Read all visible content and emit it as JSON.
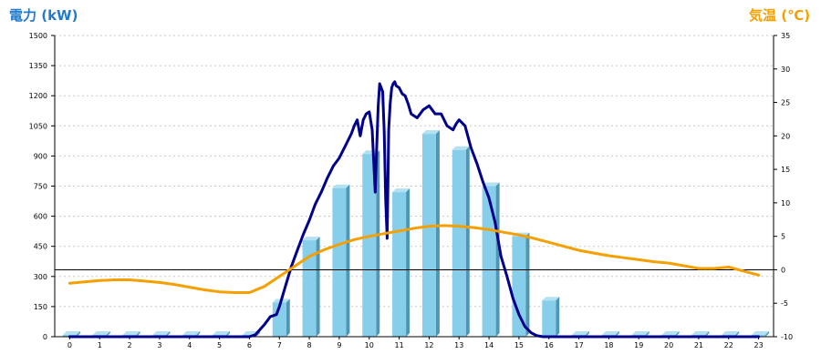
{
  "chart_data": {
    "type": "bar+line",
    "y_left_label": "電力 (kW)",
    "y_right_label": "気温 (℃)",
    "categories": [
      "0",
      "1",
      "2",
      "3",
      "4",
      "5",
      "6",
      "7",
      "8",
      "9",
      "10",
      "11",
      "12",
      "13",
      "14",
      "15",
      "16",
      "17",
      "18",
      "19",
      "20",
      "21",
      "22",
      "23"
    ],
    "y_left_ticks": [
      0,
      150,
      300,
      450,
      600,
      750,
      900,
      1050,
      1200,
      1350,
      1500
    ],
    "y_right_ticks": [
      "-10",
      "-5",
      "0",
      "5",
      "10",
      "15",
      "20",
      "25",
      "30",
      "35"
    ],
    "ylim_left": [
      0,
      1500
    ],
    "ylim_right": [
      -10,
      35
    ],
    "grid": "horizontal dotted",
    "series": [
      {
        "type": "bar",
        "axis": "left",
        "values": [
          0,
          0,
          0,
          0,
          0,
          0,
          0,
          170,
          480,
          740,
          910,
          720,
          1010,
          930,
          750,
          500,
          180,
          0,
          0,
          0,
          0,
          0,
          0,
          0
        ],
        "color": "#87ceeb"
      },
      {
        "type": "line",
        "axis": "left",
        "color": "#00008b",
        "x": [
          0,
          1,
          2,
          3,
          4,
          5,
          6,
          6.2,
          6.5,
          6.7,
          6.9,
          7.0,
          7.2,
          7.4,
          7.6,
          7.8,
          8.0,
          8.2,
          8.4,
          8.6,
          8.8,
          9.0,
          9.2,
          9.4,
          9.5,
          9.6,
          9.7,
          9.8,
          9.9,
          10.0,
          10.1,
          10.2,
          10.25,
          10.3,
          10.35,
          10.4,
          10.45,
          10.5,
          10.55,
          10.6,
          10.65,
          10.7,
          10.75,
          10.8,
          10.85,
          10.9,
          11.0,
          11.1,
          11.2,
          11.3,
          11.4,
          11.6,
          11.8,
          12.0,
          12.2,
          12.4,
          12.6,
          12.8,
          12.9,
          13.0,
          13.2,
          13.4,
          13.6,
          13.8,
          14.0,
          14.2,
          14.4,
          14.6,
          14.8,
          15.0,
          15.2,
          15.4,
          15.6,
          15.8,
          16.0,
          16.2,
          16.4,
          16.6,
          16.8,
          17,
          18,
          19,
          20,
          21,
          22,
          23
        ],
        "values": [
          0,
          0,
          0,
          0,
          0,
          0,
          0,
          10,
          60,
          100,
          110,
          150,
          250,
          350,
          430,
          510,
          580,
          660,
          720,
          790,
          850,
          890,
          950,
          1010,
          1050,
          1080,
          1000,
          1080,
          1110,
          1120,
          1030,
          720,
          950,
          1150,
          1260,
          1240,
          1220,
          1020,
          680,
          490,
          1030,
          1160,
          1240,
          1260,
          1270,
          1250,
          1240,
          1210,
          1200,
          1160,
          1110,
          1090,
          1130,
          1150,
          1110,
          1110,
          1050,
          1030,
          1060,
          1080,
          1050,
          940,
          860,
          770,
          690,
          570,
          400,
          300,
          190,
          110,
          50,
          20,
          5,
          0,
          0,
          0,
          0,
          0,
          0,
          0,
          0,
          0,
          0,
          0,
          0,
          0
        ]
      },
      {
        "type": "line",
        "axis": "right",
        "color": "#f5a000",
        "x": [
          0,
          0.5,
          1,
          1.5,
          2,
          2.5,
          3,
          3.5,
          4,
          4.5,
          5,
          5.5,
          6,
          6.5,
          7,
          7.5,
          8,
          8.5,
          9,
          9.5,
          10,
          10.5,
          11,
          11.5,
          12,
          12.5,
          13,
          13.5,
          14,
          14.5,
          15,
          15.5,
          16,
          16.5,
          17,
          17.5,
          18,
          18.5,
          19,
          19.5,
          20,
          20.5,
          21,
          21.5,
          22,
          22.5,
          23
        ],
        "values": [
          -2.0,
          -1.8,
          -1.6,
          -1.5,
          -1.5,
          -1.7,
          -1.9,
          -2.2,
          -2.6,
          -3.0,
          -3.3,
          -3.4,
          -3.4,
          -2.5,
          -1.0,
          0.5,
          2.0,
          3.0,
          3.8,
          4.5,
          5.0,
          5.4,
          5.8,
          6.2,
          6.5,
          6.6,
          6.5,
          6.3,
          6.0,
          5.6,
          5.2,
          4.7,
          4.1,
          3.5,
          2.9,
          2.5,
          2.1,
          1.8,
          1.5,
          1.2,
          1.0,
          0.6,
          0.2,
          0.2,
          0.4,
          -0.2,
          -0.8
        ]
      }
    ],
    "reference_line": {
      "axis": "right",
      "value": 0,
      "color": "#000000"
    }
  }
}
